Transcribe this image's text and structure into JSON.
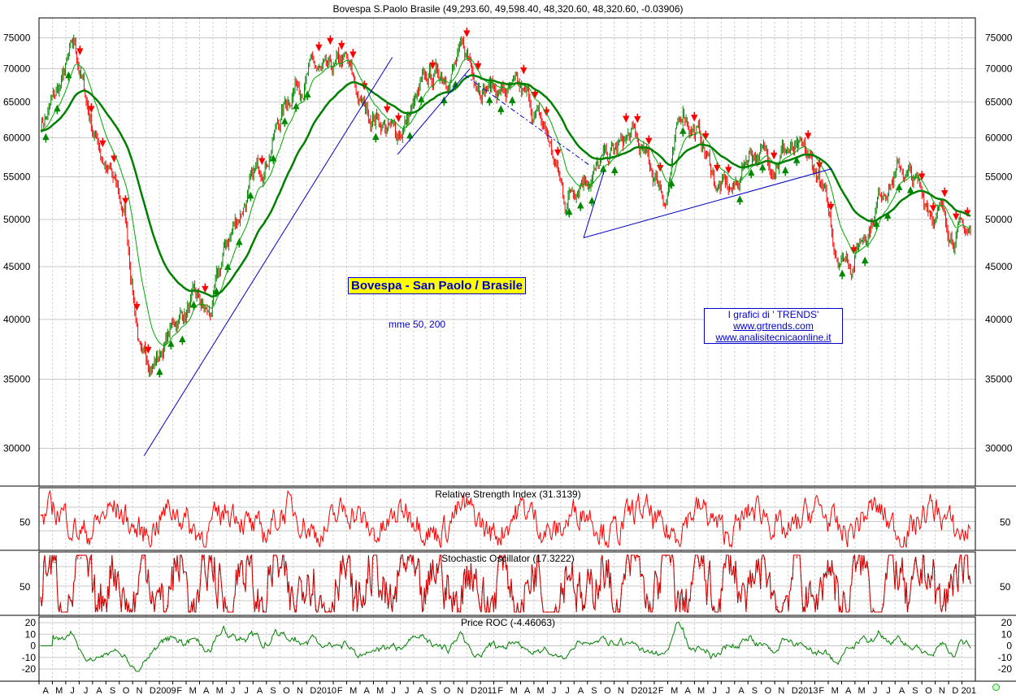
{
  "chart_title": "Bovespa S.Paolo Brasile (49,293.60, 49,598.40, 48,320.60, 48,320.60, -0.03906)",
  "label_box": "Bovespa - San Paolo / Brasile",
  "ma_label": "mme 50, 200",
  "trends_box": {
    "line1": "I grafici di ' TRENDS'",
    "line2": "www.grtrends.com",
    "line3": "www.analisitecnicaonline.it"
  },
  "chart_data": [
    {
      "type": "candlestick",
      "title": "Bovespa S.Paolo Brasile (49,293.60, 49,598.40, 48,320.60, 48,320.60, -0.03906)",
      "y_scale": "log",
      "ylim": [
        28800,
        77000
      ],
      "y_ticks": [
        30000,
        35000,
        40000,
        45000,
        50000,
        55000,
        60000,
        65000,
        70000,
        75000
      ],
      "x_months": [
        "A",
        "M",
        "J",
        "J",
        "A",
        "S",
        "O",
        "N",
        "D",
        "2009",
        "F",
        "M",
        "A",
        "M",
        "J",
        "J",
        "A",
        "S",
        "O",
        "N",
        "D",
        "2010",
        "F",
        "M",
        "A",
        "M",
        "J",
        "J",
        "A",
        "S",
        "O",
        "N",
        "D",
        "2011",
        "F",
        "M",
        "A",
        "M",
        "J",
        "J",
        "A",
        "S",
        "O",
        "N",
        "D",
        "2012",
        "F",
        "M",
        "A",
        "M",
        "J",
        "J",
        "A",
        "S",
        "O",
        "N",
        "D",
        "2013",
        "F",
        "M",
        "A",
        "M",
        "J",
        "J",
        "A",
        "S",
        "O",
        "N",
        "D",
        "201"
      ],
      "close_path_by_month": [
        62000,
        66000,
        73000,
        62000,
        56000,
        50000,
        36000,
        37000,
        40000,
        41500,
        40000,
        47000,
        52000,
        56000,
        62000,
        68000,
        70000,
        68000,
        70500,
        64000,
        63000,
        60000,
        64000,
        68000,
        70000,
        72000,
        69000,
        67000,
        66000,
        64000,
        60000,
        52000,
        56000,
        56000,
        58000,
        60000,
        56000,
        53000,
        64000,
        60000,
        54000,
        53000,
        59000,
        57000,
        59000,
        57000,
        55000,
        47000,
        46000,
        50000,
        55000,
        56000,
        53000,
        51000,
        49000,
        48320
      ],
      "moving_averages": [
        "mme 50",
        "mme 200"
      ]
    },
    {
      "type": "line",
      "title": "Relative Strength Index (31.3139)",
      "y_ticks": [
        50
      ],
      "last_value": 31.3139
    },
    {
      "type": "line",
      "title": "Stochastic Oscillator (17.3222)",
      "y_ticks": [
        50
      ],
      "last_value": 17.3222
    },
    {
      "type": "line",
      "title": "Price ROC (-4.46063)",
      "y_ticks": [
        20,
        10,
        0,
        -10,
        -20
      ],
      "last_value": -4.46063
    }
  ],
  "colors": {
    "up": "#008800",
    "down": "#ff0000",
    "ma_fast": "#00aa00",
    "ma_slow": "#008000",
    "trendline": "#0000cc",
    "rsi": "#ff0000",
    "stoch_k": "#880000",
    "roc": "#008000",
    "grid": "#c8c8c8"
  }
}
